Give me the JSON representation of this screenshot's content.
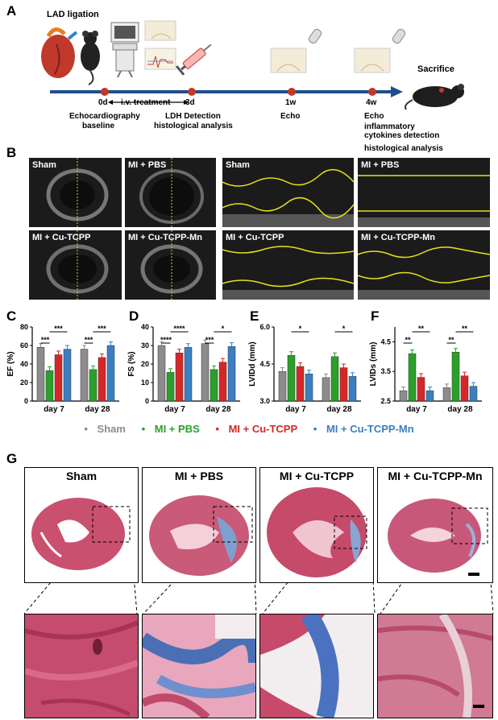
{
  "panels": {
    "a": "A",
    "b": "B",
    "c": "C",
    "d": "D",
    "e": "E",
    "f": "F",
    "g": "G"
  },
  "timeline": {
    "lad": "LAD ligation",
    "d0": "0d",
    "iv": "i.v. treatment",
    "d3": "3d",
    "w1": "1w",
    "w4": "4w",
    "sacrifice": "Sacrifice",
    "echo_base_1": "Echocardiography",
    "echo_base_2": "baseline",
    "ldh_1": "LDH Detection",
    "ldh_2": "histological analysis",
    "echo1": "Echo",
    "echo4": "Echo",
    "infl_1": "inflammatory",
    "infl_2": "cytokines detection",
    "histo": "histological analysis"
  },
  "echo_labels": {
    "sham": "Sham",
    "pbs": "MI + PBS",
    "cu": "MI + Cu-TCPP",
    "cumn": "MI + Cu-TCPP-Mn"
  },
  "legend": {
    "dot": "•",
    "sham": "Sham",
    "pbs": "MI + PBS",
    "cu": "MI + Cu-TCPP",
    "cumn": "MI + Cu-TCPP-Mn",
    "colors": {
      "sham": "#8c8c8c",
      "pbs": "#2aa02a",
      "cu": "#d62728",
      "cumn": "#3a7fc1"
    }
  },
  "histology_titles": {
    "sham": "Sham",
    "pbs": "MI + PBS",
    "cu": "MI + Cu-TCPP",
    "cumn": "MI + Cu-TCPP-Mn"
  },
  "chart_data": [
    {
      "id": "C",
      "type": "bar",
      "ylabel": "EF (%)",
      "ylim": [
        0,
        80
      ],
      "yticks": [
        "0",
        "20",
        "40",
        "60",
        "80"
      ],
      "categories": [
        "day 7",
        "day 28"
      ],
      "series": [
        {
          "name": "Sham",
          "values": [
            58,
            56
          ]
        },
        {
          "name": "MI + PBS",
          "values": [
            33,
            34
          ]
        },
        {
          "name": "MI + Cu-TCPP",
          "values": [
            50,
            47
          ]
        },
        {
          "name": "MI + Cu-TCPP-Mn",
          "values": [
            56,
            60
          ]
        }
      ],
      "significance": [
        {
          "label": "***",
          "from": 0,
          "to": 1,
          "cat": 0,
          "level": 0
        },
        {
          "label": "***",
          "from": 1,
          "to": 3,
          "cat": 0,
          "level": 1
        },
        {
          "label": "***",
          "from": 0,
          "to": 1,
          "cat": 1,
          "level": 0
        },
        {
          "label": "***",
          "from": 1,
          "to": 3,
          "cat": 1,
          "level": 1
        }
      ]
    },
    {
      "id": "D",
      "type": "bar",
      "ylabel": "FS (%)",
      "ylim": [
        0,
        40
      ],
      "yticks": [
        "0",
        "10",
        "20",
        "30",
        "40"
      ],
      "categories": [
        "day 7",
        "day 28"
      ],
      "series": [
        {
          "name": "Sham",
          "values": [
            30,
            31
          ]
        },
        {
          "name": "MI + PBS",
          "values": [
            15.5,
            17
          ]
        },
        {
          "name": "MI + Cu-TCPP",
          "values": [
            26,
            21
          ]
        },
        {
          "name": "MI + Cu-TCPP-Mn",
          "values": [
            29,
            29.5
          ]
        }
      ],
      "significance": [
        {
          "label": "****",
          "from": 0,
          "to": 1,
          "cat": 0,
          "level": 0
        },
        {
          "label": "****",
          "from": 1,
          "to": 3,
          "cat": 0,
          "level": 1
        },
        {
          "label": "***",
          "from": 0,
          "to": 1,
          "cat": 1,
          "level": 0
        },
        {
          "label": "*",
          "from": 1,
          "to": 3,
          "cat": 1,
          "level": 1
        }
      ]
    },
    {
      "id": "E",
      "type": "bar",
      "ylabel": "LVIDd (mm)",
      "ylim": [
        3.0,
        6.0
      ],
      "yticks": [
        "3.0",
        "4.5",
        "6.0"
      ],
      "categories": [
        "day 7",
        "day 28"
      ],
      "series": [
        {
          "name": "Sham",
          "values": [
            4.2,
            3.95
          ]
        },
        {
          "name": "MI + PBS",
          "values": [
            4.85,
            4.8
          ]
        },
        {
          "name": "MI + Cu-TCPP",
          "values": [
            4.4,
            4.35
          ]
        },
        {
          "name": "MI + Cu-TCPP-Mn",
          "values": [
            4.1,
            4.0
          ]
        }
      ],
      "significance": [
        {
          "label": "*",
          "from": 1,
          "to": 3,
          "cat": 0,
          "level": 1
        },
        {
          "label": "*",
          "from": 1,
          "to": 3,
          "cat": 1,
          "level": 1
        }
      ]
    },
    {
      "id": "F",
      "type": "bar",
      "ylabel": "LVIDs (mm)",
      "ylim": [
        2.5,
        5.0
      ],
      "yticks": [
        "2.5",
        "3.5",
        "4.5"
      ],
      "categories": [
        "day 7",
        "day 28"
      ],
      "series": [
        {
          "name": "Sham",
          "values": [
            2.85,
            2.95
          ]
        },
        {
          "name": "MI + PBS",
          "values": [
            4.1,
            4.15
          ]
        },
        {
          "name": "MI + Cu-TCPP",
          "values": [
            3.3,
            3.35
          ]
        },
        {
          "name": "MI + Cu-TCPP-Mn",
          "values": [
            2.85,
            3.0
          ]
        }
      ],
      "significance": [
        {
          "label": "**",
          "from": 0,
          "to": 1,
          "cat": 0,
          "level": 0
        },
        {
          "label": "**",
          "from": 1,
          "to": 3,
          "cat": 0,
          "level": 1
        },
        {
          "label": "**",
          "from": 0,
          "to": 1,
          "cat": 1,
          "level": 0
        },
        {
          "label": "**",
          "from": 1,
          "to": 3,
          "cat": 1,
          "level": 1
        }
      ]
    }
  ]
}
